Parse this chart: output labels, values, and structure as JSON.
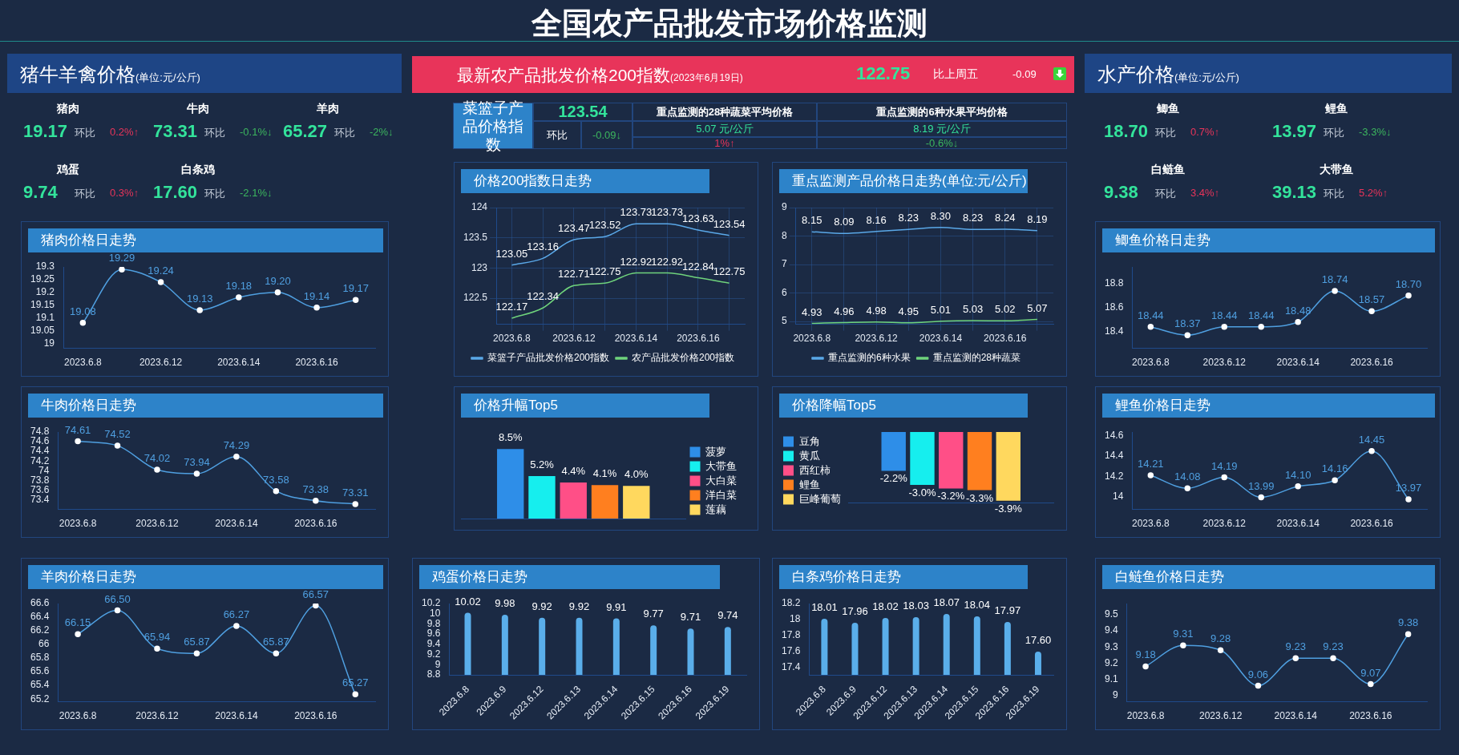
{
  "chart_data": [
    {
      "type": "other",
      "title": "全国农产品批发市场价格监测"
    },
    {
      "type": "other",
      "title": "猪牛羊禽价格",
      "subtitle": "(单位:元/公斤)",
      "categories": [
        "猪肉",
        "牛肉",
        "羊肉",
        "鸡蛋",
        "白条鸡"
      ],
      "annotations": [
        "19.17",
        "环比",
        "0.2%↑",
        "73.31",
        "环比",
        "-0.1%↓",
        "65.27",
        "环比",
        "-2%↓",
        "9.74",
        "环比",
        "0.3%↑",
        "17.60",
        "环比",
        "-2.1%↓"
      ],
      "colors": [
        "#e8345a",
        "#3cb55e",
        "#3cb55e",
        "#e8345a",
        "#3cb55e"
      ]
    },
    {
      "type": "line",
      "title": "猪肉价格日走势",
      "categories": [
        "2023.6.8",
        null,
        "2023.6.12",
        null,
        "2023.6.14",
        null,
        "2023.6.16",
        null
      ],
      "values": [
        19.08,
        19.29,
        19.24,
        19.13,
        19.18,
        19.2,
        19.14,
        19.17
      ],
      "value_labels": [
        "19.08",
        "19.29",
        "19.24",
        "19.13",
        "19.18",
        "19.20",
        "19.14",
        "19.17"
      ],
      "color": "#4f9fe0",
      "ylim": [
        18.98,
        19.3
      ],
      "yticks": [
        19,
        19.05,
        19.1,
        19.15,
        19.2,
        19.25,
        19.3
      ],
      "marker": "circle"
    },
    {
      "type": "line",
      "title": "牛肉价格日走势",
      "categories": [
        "2023.6.8",
        null,
        "2023.6.12",
        null,
        "2023.6.14",
        null,
        "2023.6.16",
        null
      ],
      "values": [
        74.61,
        74.52,
        74.02,
        73.94,
        74.29,
        73.58,
        73.38,
        73.31
      ],
      "value_labels": [
        "74.61",
        "74.52",
        "74.02",
        "73.94",
        "74.29",
        "73.58",
        "73.38",
        "73.31"
      ],
      "color": "#4f9fe0",
      "ylim": [
        73.2,
        74.8
      ],
      "yticks": [
        73.4,
        73.6,
        73.8,
        74,
        74.2,
        74.4,
        74.6,
        74.8
      ],
      "marker": "circle"
    },
    {
      "type": "line",
      "title": "羊肉价格日走势",
      "categories": [
        "2023.6.8",
        null,
        "2023.6.12",
        null,
        "2023.6.14",
        null,
        "2023.6.16",
        null
      ],
      "values": [
        66.15,
        66.5,
        65.94,
        65.87,
        66.27,
        65.87,
        66.57,
        65.27
      ],
      "value_labels": [
        "66.15",
        "66.50",
        "65.94",
        "65.87",
        "66.27",
        "65.87",
        "66.57",
        "65.27"
      ],
      "color": "#4f9fe0",
      "ylim": [
        65.16,
        66.6
      ],
      "yticks": [
        65.2,
        65.4,
        65.6,
        65.8,
        66,
        66.2,
        66.4,
        66.6
      ],
      "marker": "circle"
    },
    {
      "type": "other",
      "title": "最新农产品批发价格200指数",
      "subtitle": "(2023年6月19日)",
      "annotations": [
        "122.75",
        "比上周五",
        "-0.09"
      ]
    },
    {
      "type": "other",
      "annotations": [
        "菜篮子产品价格指数",
        "123.54",
        "环比",
        "-0.09↓",
        "重点监测的28种蔬菜平均价格",
        "5.07 元/公斤",
        "1%↑",
        "重点监测的6种水果平均价格",
        "8.19 元/公斤",
        "-0.6%↓"
      ],
      "colors": [
        null,
        "#33e39b",
        null,
        "#3cb55e",
        null,
        "#33e39b",
        "#e8345a",
        null,
        "#33e39b",
        "#3cb55e"
      ]
    },
    {
      "type": "line",
      "title": "价格200指数日走势",
      "categories": [
        "2023.6.8",
        null,
        "2023.6.12",
        null,
        "2023.6.14",
        null,
        "2023.6.16",
        null
      ],
      "ylim": [
        122.07,
        124
      ],
      "yticks": [
        122.5,
        123,
        123.5,
        124
      ],
      "grid": true,
      "legend": "bottom",
      "series": [
        {
          "name": "菜篮子产品批发价格200指数",
          "color": "#5aa8e8",
          "values": [
            123.05,
            123.16,
            123.47,
            123.52,
            123.73,
            123.73,
            123.63,
            123.54
          ],
          "value_labels": [
            "123.05",
            "123.16",
            "123.47",
            "123.52",
            "123.73",
            "123.73",
            "123.63",
            "123.54"
          ]
        },
        {
          "name": "农产品批发价格200指数",
          "color": "#6fd37c",
          "values": [
            122.17,
            122.34,
            122.71,
            122.75,
            122.92,
            122.92,
            122.84,
            122.75
          ],
          "value_labels": [
            "122.17",
            "122.34",
            "122.71",
            "122.75",
            "122.92",
            "122.92",
            "122.84",
            "122.75"
          ]
        }
      ]
    },
    {
      "type": "line",
      "title": "重点监测产品价格日走势(单位:元/公斤)",
      "categories": [
        "2023.6.8",
        null,
        "2023.6.12",
        null,
        "2023.6.14",
        null,
        "2023.6.16",
        null
      ],
      "ylim": [
        4.9,
        9
      ],
      "yticks": [
        5,
        6,
        7,
        8,
        9
      ],
      "grid": true,
      "legend": "bottom",
      "series": [
        {
          "name": "重点监测的6种水果",
          "color": "#5aa8e8",
          "values": [
            8.15,
            8.09,
            8.16,
            8.23,
            8.3,
            8.23,
            8.24,
            8.19
          ],
          "value_labels": [
            "8.15",
            "8.09",
            "8.16",
            "8.23",
            "8.30",
            "8.23",
            "8.24",
            "8.19"
          ]
        },
        {
          "name": "重点监测的28种蔬菜",
          "color": "#6fd37c",
          "values": [
            4.93,
            4.96,
            4.98,
            4.95,
            5.01,
            5.03,
            5.02,
            5.07
          ],
          "value_labels": [
            "4.93",
            "4.96",
            "4.98",
            "4.95",
            "5.01",
            "5.03",
            "5.02",
            "5.07"
          ]
        }
      ]
    },
    {
      "type": "bar",
      "title": "价格升幅Top5",
      "categories": [
        null
      ],
      "legend": "right",
      "tick_labels": false,
      "series": [
        {
          "name": "菠萝",
          "color": "#2e8ee8",
          "values": [
            8.5
          ],
          "value_labels": [
            "8.5%"
          ]
        },
        {
          "name": "大带鱼",
          "color": "#16eeee",
          "values": [
            5.2
          ],
          "value_labels": [
            "5.2%"
          ]
        },
        {
          "name": "大白菜",
          "color": "#ff4f87",
          "values": [
            4.4
          ],
          "value_labels": [
            "4.4%"
          ]
        },
        {
          "name": "洋白菜",
          "color": "#ff7f1f",
          "values": [
            4.1
          ],
          "value_labels": [
            "4.1%"
          ]
        },
        {
          "name": "莲藕",
          "color": "#ffd85e",
          "values": [
            4.0
          ],
          "value_labels": [
            "4.0%"
          ]
        }
      ]
    },
    {
      "type": "bar",
      "title": "价格降幅Top5",
      "categories": [
        null
      ],
      "legend": "left",
      "tick_labels": false,
      "series": [
        {
          "name": "豆角",
          "color": "#2e8ee8",
          "values": [
            -2.2
          ],
          "value_labels": [
            "-2.2%"
          ]
        },
        {
          "name": "黄瓜",
          "color": "#16eeee",
          "values": [
            -3.0
          ],
          "value_labels": [
            "-3.0%"
          ]
        },
        {
          "name": "西红柿",
          "color": "#ff4f87",
          "values": [
            -3.2
          ],
          "value_labels": [
            "-3.2%"
          ]
        },
        {
          "name": "鲤鱼",
          "color": "#ff7f1f",
          "values": [
            -3.3
          ],
          "value_labels": [
            "-3.3%"
          ]
        },
        {
          "name": "巨峰葡萄",
          "color": "#ffd85e",
          "values": [
            -3.9
          ],
          "value_labels": [
            "-3.9%"
          ]
        }
      ]
    },
    {
      "type": "bar",
      "title": "鸡蛋价格日走势",
      "categories": [
        "2023.6.8",
        "2023.6.9",
        "2023.6.12",
        "2023.6.13",
        "2023.6.14",
        "2023.6.15",
        "2023.6.16",
        "2023.6.19"
      ],
      "values": [
        10.02,
        9.98,
        9.92,
        9.92,
        9.91,
        9.77,
        9.71,
        9.74
      ],
      "value_labels": [
        "10.02",
        "9.98",
        "9.92",
        "9.92",
        "9.91",
        "9.77",
        "9.71",
        "9.74"
      ],
      "color": "#5aaeea",
      "ylim": [
        8.8,
        10.2
      ],
      "yticks": [
        8.8,
        9,
        9.2,
        9.4,
        9.6,
        9.8,
        10,
        10.2
      ]
    },
    {
      "type": "bar",
      "title": "白条鸡价格日走势",
      "categories": [
        "2023.6.8",
        "2023.6.9",
        "2023.6.12",
        "2023.6.13",
        "2023.6.14",
        "2023.6.15",
        "2023.6.16",
        "2023.6.19"
      ],
      "values": [
        18.01,
        17.96,
        18.02,
        18.03,
        18.07,
        18.04,
        17.97,
        17.6
      ],
      "value_labels": [
        "18.01",
        "17.96",
        "18.02",
        "18.03",
        "18.07",
        "18.04",
        "17.97",
        "17.60"
      ],
      "color": "#5aaeea",
      "ylim": [
        17.31,
        18.2
      ],
      "yticks": [
        17.4,
        17.6,
        17.8,
        18,
        18.2
      ]
    },
    {
      "type": "other",
      "title": "水产价格",
      "subtitle": "(单位:元/公斤)",
      "categories": [
        "鲫鱼",
        "鲤鱼",
        "白鲢鱼",
        "大带鱼"
      ],
      "annotations": [
        "18.70",
        "环比",
        "0.7%↑",
        "13.97",
        "环比",
        "-3.3%↓",
        "9.38",
        "环比",
        "3.4%↑",
        "39.13",
        "环比",
        "5.2%↑"
      ],
      "colors": [
        "#e8345a",
        "#3cb55e",
        "#e8345a",
        "#e8345a"
      ]
    },
    {
      "type": "line",
      "title": "鲫鱼价格日走势",
      "categories": [
        "2023.6.8",
        null,
        "2023.6.12",
        null,
        "2023.6.14",
        null,
        "2023.6.16",
        null
      ],
      "values": [
        18.44,
        18.37,
        18.44,
        18.44,
        18.48,
        18.74,
        18.57,
        18.7
      ],
      "value_labels": [
        "18.44",
        "18.37",
        "18.44",
        "18.44",
        "18.48",
        "18.74",
        "18.57",
        "18.70"
      ],
      "color": "#4f9fe0",
      "ylim": [
        18.26,
        18.94
      ],
      "yticks": [
        18.4,
        18.6,
        18.8
      ],
      "marker": "circle"
    },
    {
      "type": "line",
      "title": "鲤鱼价格日走势",
      "categories": [
        "2023.6.8",
        null,
        "2023.6.12",
        null,
        "2023.6.14",
        null,
        "2023.6.16",
        null
      ],
      "values": [
        14.21,
        14.08,
        14.19,
        13.99,
        14.1,
        14.16,
        14.45,
        13.97
      ],
      "value_labels": [
        "14.21",
        "14.08",
        "14.19",
        "13.99",
        "14.10",
        "14.16",
        "14.45",
        "13.97"
      ],
      "color": "#4f9fe0",
      "ylim": [
        13.87,
        14.64
      ],
      "yticks": [
        14,
        14.2,
        14.4,
        14.6
      ],
      "marker": "circle"
    },
    {
      "type": "line",
      "title": "白鲢鱼价格日走势",
      "categories": [
        "2023.6.8",
        null,
        "2023.6.12",
        null,
        "2023.6.14",
        null,
        "2023.6.16",
        null
      ],
      "values": [
        9.18,
        9.31,
        9.28,
        9.06,
        9.23,
        9.23,
        9.07,
        9.38
      ],
      "value_labels": [
        "9.18",
        "9.31",
        "9.28",
        "9.06",
        "9.23",
        "9.23",
        "9.07",
        "9.38"
      ],
      "color": "#4f9fe0",
      "ylim": [
        8.96,
        9.57
      ],
      "yticks": [
        9,
        9.1,
        9.2,
        9.3,
        9.4,
        9.5
      ],
      "marker": "circle"
    }
  ]
}
